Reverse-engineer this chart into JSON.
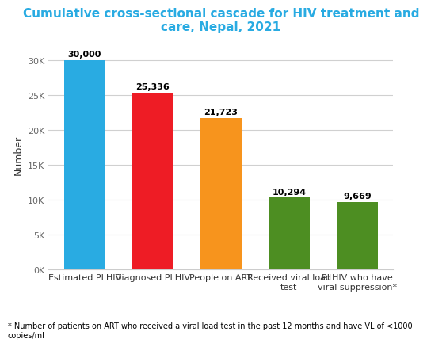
{
  "categories": [
    "Estimated PLHIV",
    "Diagnosed PLHIV",
    "People on ART",
    "Received viral load\ntest",
    "PLHIV who have\nviral suppression*"
  ],
  "values": [
    30000,
    25336,
    21723,
    10294,
    9669
  ],
  "bar_colors": [
    "#29ABE2",
    "#EE1C25",
    "#F7941D",
    "#4D8E22",
    "#4D8E22"
  ],
  "labels": [
    "30,000",
    "25,336",
    "21,723",
    "10,294",
    "9,669"
  ],
  "title": "Cumulative cross-sectional cascade for HIV treatment and\ncare, Nepal, 2021",
  "title_color": "#29ABE2",
  "ylabel": "Number",
  "ylim": [
    0,
    33000
  ],
  "yticks": [
    0,
    5000,
    10000,
    15000,
    20000,
    25000,
    30000
  ],
  "ytick_labels": [
    "0K",
    "5K",
    "10K",
    "15K",
    "20K",
    "25K",
    "30K"
  ],
  "footnote": "* Number of patients on ART who received a viral load test in the past 12 months and have VL of <1000\ncopies/ml",
  "background_color": "#FFFFFF",
  "grid_color": "#D0D0D0",
  "bar_width": 0.6,
  "title_fontsize": 11,
  "label_fontsize": 8,
  "tick_fontsize": 8,
  "ylabel_fontsize": 9,
  "footnote_fontsize": 7
}
